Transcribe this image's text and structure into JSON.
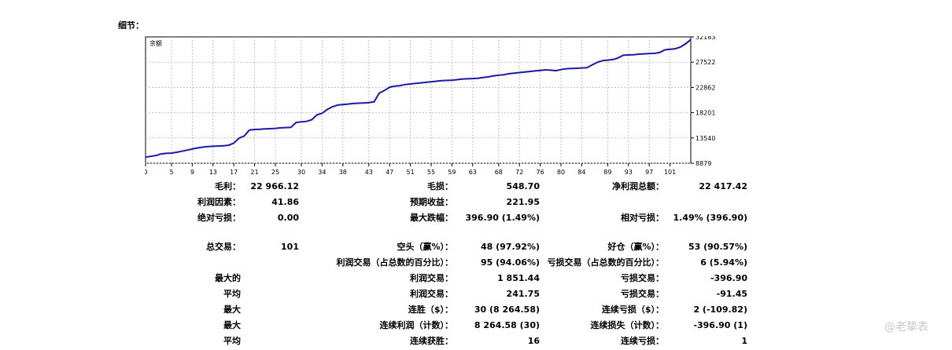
{
  "page": {
    "title": "细节："
  },
  "chart_data": {
    "type": "line",
    "series_label": "余额",
    "color_line": "#1a1aa6",
    "grid": true,
    "x_ticks": [
      "0",
      "5",
      "9",
      "13",
      "17",
      "21",
      "25",
      "30",
      "34",
      "38",
      "43",
      "47",
      "51",
      "55",
      "59",
      "63",
      "68",
      "72",
      "76",
      "80",
      "84",
      "89",
      "93",
      "97",
      "101"
    ],
    "y_ticks": [
      "32183",
      "27522",
      "22862",
      "18201",
      "13540",
      "8879"
    ],
    "ylim": [
      8879,
      32183
    ],
    "xlim": [
      0,
      105
    ],
    "x": [
      0,
      1,
      2,
      3,
      4,
      5,
      6,
      7,
      8,
      9,
      10,
      11,
      12,
      13,
      14,
      15,
      16,
      17,
      18,
      19,
      20,
      21,
      22,
      23,
      24,
      25,
      26,
      27,
      28,
      29,
      30,
      31,
      32,
      33,
      34,
      35,
      36,
      37,
      38,
      39,
      40,
      41,
      42,
      43,
      44,
      45,
      46,
      47,
      48,
      49,
      50,
      51,
      52,
      53,
      54,
      55,
      56,
      57,
      58,
      59,
      60,
      61,
      62,
      63,
      64,
      65,
      66,
      67,
      68,
      69,
      70,
      71,
      72,
      73,
      74,
      75,
      76,
      77,
      78,
      79,
      80,
      81,
      82,
      83,
      84,
      85,
      86,
      87,
      88,
      89,
      90,
      91,
      92,
      93,
      94,
      95,
      96,
      97,
      98,
      99,
      100,
      101,
      102,
      103,
      104,
      105
    ],
    "values": [
      10000,
      10150,
      10300,
      10600,
      10700,
      10750,
      10900,
      11100,
      11300,
      11500,
      11700,
      11850,
      11950,
      12000,
      12050,
      12100,
      12200,
      12600,
      13500,
      13900,
      15000,
      15100,
      15150,
      15200,
      15250,
      15300,
      15400,
      15450,
      15500,
      16400,
      16500,
      16600,
      16900,
      17800,
      18100,
      18800,
      19300,
      19600,
      19700,
      19800,
      19900,
      19950,
      20000,
      20050,
      20200,
      21800,
      22300,
      22900,
      23100,
      23200,
      23400,
      23500,
      23600,
      23700,
      23800,
      23900,
      24000,
      24100,
      24150,
      24200,
      24300,
      24400,
      24450,
      24500,
      24550,
      24700,
      24800,
      25000,
      25100,
      25200,
      25400,
      25500,
      25600,
      25700,
      25800,
      25900,
      26000,
      26100,
      26050,
      25950,
      26150,
      26300,
      26350,
      26400,
      26450,
      26500,
      27000,
      27500,
      27800,
      27900,
      28000,
      28300,
      28800,
      28850,
      28900,
      29000,
      29050,
      29100,
      29150,
      29300,
      29800,
      29900,
      30000,
      30300,
      30900,
      31700
    ]
  },
  "stats": {
    "gross_profit_label": "毛利：",
    "gross_profit": "22 966.12",
    "gross_loss_label": "毛损：",
    "gross_loss": "548.70",
    "net_profit_label": "净利润总额：",
    "net_profit": "22 417.42",
    "profit_factor_label": "利润因素：",
    "profit_factor": "41.86",
    "expected_payoff_label": "预期收益：",
    "expected_payoff": "221.95",
    "abs_drawdown_label": "绝对亏损：",
    "abs_drawdown": "0.00",
    "max_drawdown_label": "最大跌幅：",
    "max_drawdown": "396.90 (1.49%)",
    "rel_drawdown_label": "相对亏损：",
    "rel_drawdown": "1.49% (396.90)",
    "total_trades_label": "总交易：",
    "total_trades": "101",
    "short_label": "空头（赢%）：",
    "short": "48 (97.92%)",
    "long_label": "好仓（赢%）：",
    "long": "53 (90.57%)",
    "profit_trades_label": "利润交易（占总数的百分比）：",
    "profit_trades": "95 (94.06%)",
    "loss_trades_label": "亏损交易（占总数的百分比）：",
    "loss_trades": "6 (5.94%)",
    "largest_label": "最大的",
    "largest_profit_label": "利润交易：",
    "largest_profit": "1 851.44",
    "largest_loss_label": "亏损交易：",
    "largest_loss": "-396.90",
    "average_label": "平均",
    "avg_profit_label": "利润交易：",
    "avg_profit": "241.75",
    "avg_loss_label": "亏损交易：",
    "avg_loss": "-91.45",
    "max_label": "最大",
    "max_cons_wins_label": "连胜（$）：",
    "max_cons_wins": "30 (8 264.58)",
    "max_cons_losses_label": "连续亏损（$）：",
    "max_cons_losses": "2 (-109.82)",
    "max2_label": "最大",
    "max_cons_profit_label": "连续利润（计数）：",
    "max_cons_profit": "8 264.58 (30)",
    "max_cons_loss_label": "连续损失（计数）：",
    "max_cons_loss": "-396.90 (1)",
    "avg2_label": "平均",
    "avg_cons_wins_label": "连续获胜：",
    "avg_cons_wins": "16",
    "avg_cons_losses_label": "连续亏损：",
    "avg_cons_losses": "1"
  },
  "watermark": "@老挚表"
}
